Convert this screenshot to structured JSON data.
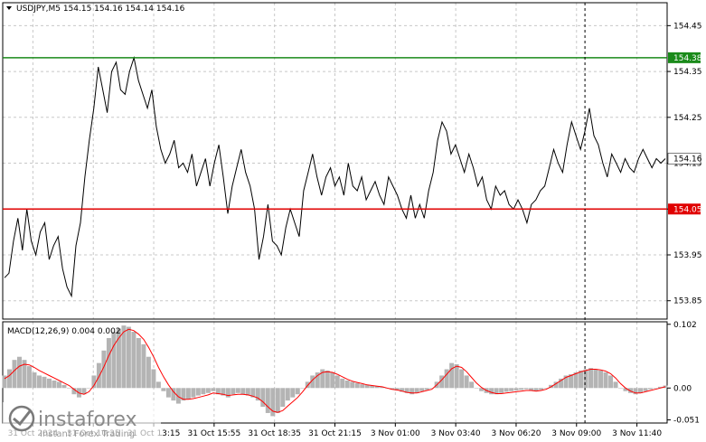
{
  "header": {
    "symbol_line": "USDJPY,M5  154.15 154.16 154.14 154.16",
    "indicator_line": "MACD(12,26,9) 0.004 0.002"
  },
  "watermark": {
    "brand": "instaforex",
    "tagline": "Instant Forex Trading"
  },
  "price_badges": {
    "green_level": "154.38",
    "red_level": "154.05",
    "current": "154.16"
  },
  "chart_data": [
    {
      "type": "line",
      "title": "USDJPY,M5",
      "y_ticks": [
        "154.45",
        "154.35",
        "154.25",
        "154.15",
        "154.05",
        "153.95",
        "153.85"
      ],
      "ylim": [
        153.81,
        154.5
      ],
      "x_tick_labels": [
        "31 Oct 2024",
        "31 Oct 10:35",
        "31 Oct 13:15",
        "31 Oct 15:55",
        "31 Oct 18:35",
        "31 Oct 21:15",
        "3 Nov 01:00",
        "3 Nov 03:40",
        "3 Nov 06:20",
        "3 Nov 09:00",
        "3 Nov 11:40"
      ],
      "horizontal_levels": [
        {
          "value": 154.38,
          "color": "#1a8a1a"
        },
        {
          "value": 154.05,
          "color": "#e00000"
        }
      ],
      "dashed_vertical_at_index": 130,
      "grid": true,
      "series": [
        {
          "color": "#000000",
          "values": [
            153.9,
            153.91,
            153.98,
            154.03,
            153.96,
            154.05,
            153.98,
            153.95,
            154.0,
            154.02,
            153.94,
            153.97,
            153.99,
            153.92,
            153.88,
            153.86,
            153.97,
            154.02,
            154.12,
            154.2,
            154.27,
            154.36,
            154.31,
            154.26,
            154.35,
            154.37,
            154.31,
            154.3,
            154.35,
            154.38,
            154.33,
            154.3,
            154.27,
            154.31,
            154.23,
            154.18,
            154.15,
            154.17,
            154.2,
            154.14,
            154.15,
            154.13,
            154.17,
            154.1,
            154.13,
            154.16,
            154.1,
            154.15,
            154.19,
            154.12,
            154.04,
            154.1,
            154.14,
            154.18,
            154.13,
            154.1,
            154.05,
            153.94,
            153.99,
            154.06,
            153.98,
            153.97,
            153.95,
            154.01,
            154.05,
            154.02,
            153.99,
            154.09,
            154.13,
            154.17,
            154.12,
            154.08,
            154.12,
            154.14,
            154.1,
            154.12,
            154.08,
            154.15,
            154.1,
            154.09,
            154.12,
            154.07,
            154.09,
            154.11,
            154.08,
            154.06,
            154.12,
            154.1,
            154.08,
            154.05,
            154.03,
            154.08,
            154.03,
            154.06,
            154.03,
            154.09,
            154.13,
            154.2,
            154.24,
            154.22,
            154.17,
            154.19,
            154.16,
            154.13,
            154.17,
            154.14,
            154.1,
            154.12,
            154.07,
            154.05,
            154.1,
            154.08,
            154.09,
            154.06,
            154.05,
            154.07,
            154.05,
            154.02,
            154.06,
            154.07,
            154.09,
            154.1,
            154.14,
            154.18,
            154.15,
            154.13,
            154.19,
            154.24,
            154.21,
            154.18,
            154.22,
            154.27,
            154.21,
            154.19,
            154.15,
            154.12,
            154.17,
            154.15,
            154.13,
            154.16,
            154.14,
            154.13,
            154.16,
            154.18,
            154.16,
            154.14,
            154.16,
            154.15,
            154.16
          ]
        },
        {
          "name": "MACD",
          "type": "bar",
          "ylim": [
            -0.056,
            0.106
          ],
          "y_ticks": [
            "0.102",
            "0.00",
            "-0.051"
          ],
          "values": [
            0.02,
            0.03,
            0.045,
            0.05,
            0.045,
            0.035,
            0.025,
            0.02,
            0.018,
            0.015,
            0.012,
            0.01,
            0.005,
            0.0,
            -0.01,
            -0.015,
            -0.01,
            0.0,
            0.02,
            0.04,
            0.06,
            0.08,
            0.09,
            0.095,
            0.1,
            0.098,
            0.09,
            0.08,
            0.07,
            0.05,
            0.03,
            0.01,
            -0.005,
            -0.015,
            -0.02,
            -0.025,
            -0.02,
            -0.018,
            -0.015,
            -0.012,
            -0.01,
            -0.008,
            -0.005,
            -0.01,
            -0.012,
            -0.015,
            -0.01,
            -0.008,
            -0.01,
            -0.012,
            -0.015,
            -0.02,
            -0.03,
            -0.04,
            -0.045,
            -0.04,
            -0.03,
            -0.02,
            -0.015,
            -0.01,
            0.0,
            0.01,
            0.02,
            0.025,
            0.03,
            0.028,
            0.025,
            0.02,
            0.015,
            0.012,
            0.01,
            0.008,
            0.006,
            0.005,
            0.004,
            0.003,
            0.002,
            0.0,
            -0.002,
            -0.004,
            -0.006,
            -0.008,
            -0.01,
            -0.008,
            -0.005,
            -0.003,
            0.0,
            0.01,
            0.02,
            0.03,
            0.04,
            0.038,
            0.03,
            0.02,
            0.01,
            0.0,
            -0.005,
            -0.008,
            -0.01,
            -0.01,
            -0.008,
            -0.006,
            -0.005,
            -0.004,
            -0.003,
            -0.002,
            -0.004,
            -0.005,
            -0.003,
            0.0,
            0.005,
            0.01,
            0.015,
            0.02,
            0.022,
            0.025,
            0.028,
            0.03,
            0.032,
            0.03,
            0.028,
            0.025,
            0.02,
            0.01,
            0.0,
            -0.005,
            -0.008,
            -0.01,
            -0.008,
            -0.005,
            -0.002,
            0.0,
            0.002,
            0.004
          ]
        },
        {
          "name": "Signal",
          "color": "#ff0000",
          "values": [
            0.015,
            0.02,
            0.028,
            0.035,
            0.038,
            0.037,
            0.033,
            0.028,
            0.024,
            0.02,
            0.016,
            0.012,
            0.008,
            0.004,
            -0.002,
            -0.008,
            -0.01,
            -0.006,
            0.004,
            0.018,
            0.034,
            0.052,
            0.068,
            0.08,
            0.09,
            0.094,
            0.092,
            0.086,
            0.078,
            0.065,
            0.05,
            0.033,
            0.018,
            0.005,
            -0.006,
            -0.014,
            -0.018,
            -0.018,
            -0.017,
            -0.015,
            -0.013,
            -0.011,
            -0.008,
            -0.009,
            -0.01,
            -0.012,
            -0.011,
            -0.01,
            -0.01,
            -0.011,
            -0.013,
            -0.016,
            -0.022,
            -0.03,
            -0.037,
            -0.039,
            -0.036,
            -0.029,
            -0.022,
            -0.015,
            -0.006,
            0.004,
            0.013,
            0.02,
            0.025,
            0.026,
            0.025,
            0.022,
            0.018,
            0.014,
            0.011,
            0.009,
            0.007,
            0.005,
            0.004,
            0.003,
            0.002,
            0.0,
            -0.002,
            -0.003,
            -0.005,
            -0.007,
            -0.008,
            -0.008,
            -0.006,
            -0.004,
            -0.002,
            0.005,
            0.013,
            0.022,
            0.031,
            0.035,
            0.033,
            0.026,
            0.017,
            0.008,
            0.001,
            -0.004,
            -0.007,
            -0.009,
            -0.009,
            -0.008,
            -0.007,
            -0.006,
            -0.005,
            -0.004,
            -0.004,
            -0.005,
            -0.004,
            -0.002,
            0.002,
            0.007,
            0.012,
            0.017,
            0.02,
            0.023,
            0.026,
            0.028,
            0.03,
            0.03,
            0.029,
            0.027,
            0.023,
            0.016,
            0.007,
            0.0,
            -0.005,
            -0.008,
            -0.008,
            -0.006,
            -0.004,
            -0.002,
            0.0,
            0.002
          ]
        }
      ]
    }
  ]
}
